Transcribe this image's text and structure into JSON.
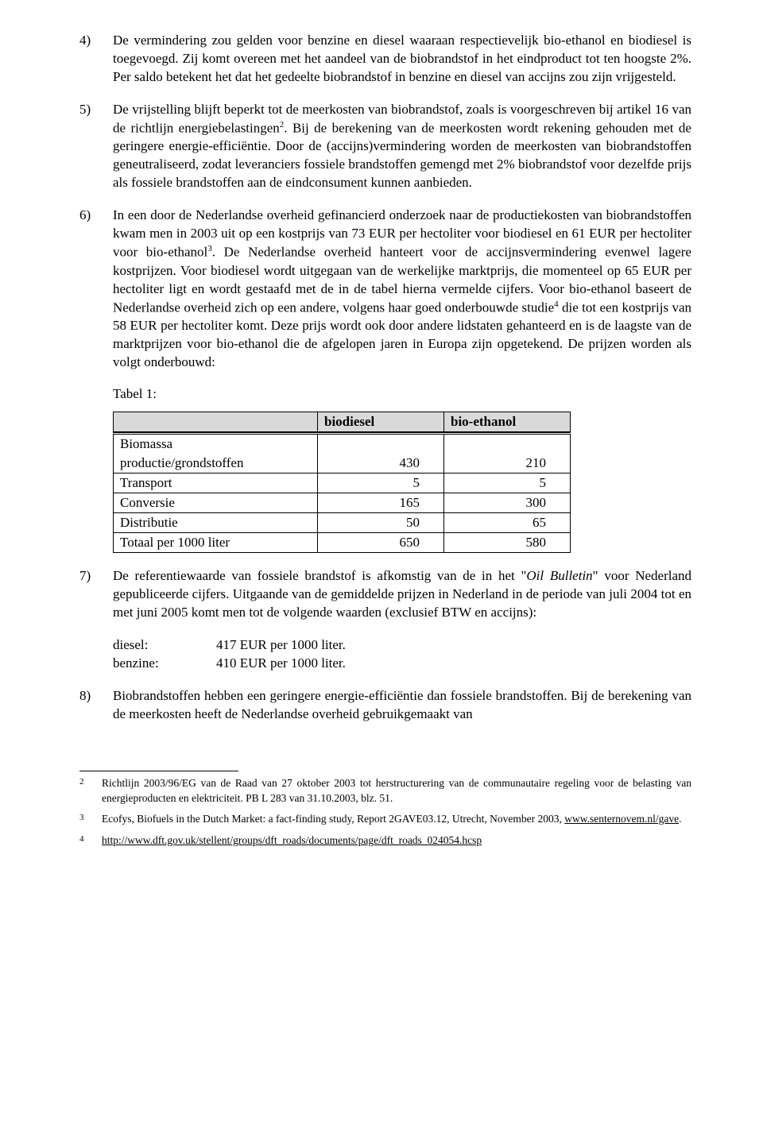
{
  "paragraphs": {
    "p4": {
      "num": "4)",
      "text": "De vermindering zou gelden voor benzine en diesel waaraan respectievelijk bio-ethanol en biodiesel is toegevoegd. Zij komt overeen met het aandeel van de biobrandstof in het eindproduct tot ten hoogste 2%. Per saldo betekent het dat het gedeelte biobrandstof in benzine en diesel van accijns zou zijn vrijgesteld."
    },
    "p5": {
      "num": "5)",
      "text_a": "De vrijstelling blijft beperkt tot de meerkosten van biobrandstof, zoals is voorgeschreven bij artikel 16 van de richtlijn energiebelastingen",
      "sup1": "2",
      "text_b": ". Bij de berekening van de meerkosten wordt rekening gehouden met de geringere energie-efficiëntie. Door de (accijns)vermindering worden de meerkosten van biobrandstoffen geneutraliseerd, zodat leveranciers fossiele brandstoffen gemengd met 2% biobrandstof voor dezelfde prijs als fossiele brandstoffen aan de eindconsument kunnen aanbieden."
    },
    "p6": {
      "num": "6)",
      "text_a": "In een door de Nederlandse overheid gefinancierd onderzoek naar de productiekosten van biobrandstoffen kwam men in 2003 uit op een kostprijs van 73 EUR per hectoliter voor biodiesel en 61 EUR per hectoliter voor bio-ethanol",
      "sup1": "3",
      "text_b": ". De Nederlandse overheid hanteert voor de accijnsvermindering evenwel lagere kostprijzen. Voor biodiesel wordt uitgegaan van de werkelijke marktprijs, die momenteel op 65 EUR per hectoliter ligt en wordt gestaafd met de in de tabel hierna vermelde cijfers. Voor bio-ethanol baseert de Nederlandse overheid zich op een andere, volgens haar goed onderbouwde studie",
      "sup2": "4",
      "text_c": " die tot een kostprijs van 58 EUR per hectoliter komt. Deze prijs wordt ook door andere lidstaten gehanteerd en is de laagste van de marktprijzen voor bio-ethanol die de afgelopen jaren in Europa zijn opgetekend. De prijzen worden als volgt onderbouwd:"
    },
    "p7": {
      "num": "7)",
      "text_a": "De referentiewaarde van fossiele brandstof is afkomstig van de in het \"",
      "italic": "Oil Bulletin",
      "text_b": "\" voor Nederland gepubliceerde cijfers. Uitgaande van de gemiddelde prijzen in Nederland in de periode van juli 2004 tot en met juni 2005 komt men tot de volgende waarden (exclusief BTW en accijns):"
    },
    "p8": {
      "num": "8)",
      "text": "Biobrandstoffen hebben een geringere energie-efficiëntie dan fossiele brandstoffen. Bij de berekening van de meerkosten heeft de Nederlandse overheid gebruikgemaakt van"
    }
  },
  "table": {
    "label": "Tabel 1:",
    "headers": {
      "c1": "biodiesel",
      "c2": "bio-ethanol"
    },
    "rows": [
      {
        "label_a": "Biomassa",
        "label_b": "productie/grondstoffen",
        "v1": "430",
        "v2": "210",
        "twoLines": true
      },
      {
        "label": "Transport",
        "v1": "5",
        "v2": "5"
      },
      {
        "label": "Conversie",
        "v1": "165",
        "v2": "300"
      },
      {
        "label": "Distributie",
        "v1": "50",
        "v2": "65"
      },
      {
        "label": "Totaal per 1000 liter",
        "v1": "650",
        "v2": "580"
      }
    ]
  },
  "values": {
    "diesel": {
      "label": "diesel:",
      "value": "417 EUR per 1000 liter."
    },
    "benzine": {
      "label": "benzine:",
      "value": "410 EUR per 1000 liter."
    }
  },
  "footnotes": {
    "f2": {
      "num": "2",
      "text": "Richtlijn 2003/96/EG van de Raad van 27 oktober 2003 tot herstructurering van de communautaire regeling voor de belasting van energieproducten en elektriciteit. PB L 283 van 31.10.2003, blz. 51."
    },
    "f3": {
      "num": "3",
      "text_a": "Ecofys, Biofuels in the Dutch Market: a fact-finding study, Report 2GAVE03.12, Utrecht, November 2003, ",
      "link": "www.senternovem.nl/gave",
      "text_b": "."
    },
    "f4": {
      "num": "4",
      "link": "http://www.dft.gov.uk/stellent/groups/dft_roads/documents/page/dft_roads_024054.hcsp"
    }
  }
}
